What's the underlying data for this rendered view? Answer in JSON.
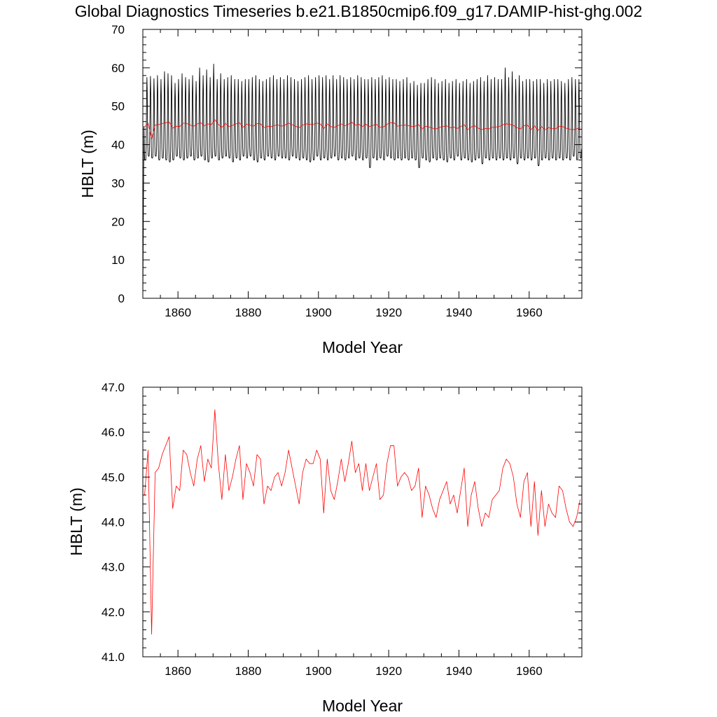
{
  "figure": {
    "title": "Global Diagnostics Timeseries b.e21.B1850cmip6.f09_g17.DAMIP-hist-ghg.002"
  },
  "chart_data": [
    {
      "type": "line",
      "title": "",
      "xlabel": "Model Year",
      "ylabel": "HBLT (m)",
      "xlim": [
        1850,
        1975
      ],
      "ylim": [
        0,
        70
      ],
      "xticks": [
        1860,
        1880,
        1900,
        1920,
        1940,
        1960
      ],
      "yticks": [
        0,
        10,
        20,
        30,
        40,
        50,
        60,
        70
      ],
      "ytick_labels": [
        "0",
        "10",
        "20",
        "30",
        "40",
        "50",
        "60",
        "70"
      ],
      "grid": false,
      "legend": "none",
      "series": [
        {
          "color": "#000000",
          "resolution": "monthly",
          "x_start": 1850.0,
          "points_per_year": 12,
          "initial_values": [
            0.0,
            12.0,
            25.0,
            36.0
          ],
          "annual_maxima": [
            56.0,
            57.5,
            57.8,
            57.2,
            58.0,
            57.0,
            59.0,
            58.5,
            58.0,
            56.0,
            57.0,
            58.5,
            57.5,
            57.0,
            58.0,
            56.5,
            60.0,
            58.0,
            59.5,
            57.5,
            61.0,
            57.0,
            58.5,
            57.0,
            57.5,
            58.0,
            57.0,
            57.0,
            56.5,
            57.0,
            57.0,
            57.5,
            58.0,
            57.0,
            56.5,
            57.0,
            57.5,
            58.0,
            57.0,
            57.5,
            57.0,
            58.0,
            57.5,
            57.0,
            56.5,
            57.0,
            57.5,
            58.0,
            57.0,
            57.5,
            58.0,
            57.5,
            58.0,
            57.0,
            58.0,
            57.0,
            58.0,
            57.5,
            57.0,
            57.5,
            57.0,
            58.0,
            57.5,
            57.0,
            57.0,
            57.5,
            57.0,
            57.5,
            58.0,
            57.0,
            57.5,
            57.0,
            57.0,
            56.5,
            57.0,
            57.5,
            56.0,
            56.5,
            55.5,
            56.0,
            56.0,
            57.0,
            57.5,
            57.0,
            56.0,
            56.5,
            57.0,
            56.0,
            56.5,
            57.0,
            56.0,
            56.5,
            57.0,
            56.0,
            56.5,
            57.0,
            57.5,
            56.5,
            58.0,
            57.0,
            57.5,
            57.0,
            57.0,
            60.0,
            57.5,
            59.0,
            57.0,
            58.0,
            56.5,
            57.0,
            57.0,
            56.5,
            57.0,
            57.0,
            56.0,
            57.0,
            56.5,
            57.0,
            57.0,
            56.5,
            56.0,
            57.0,
            57.5,
            57.0,
            57.0
          ],
          "annual_minima": [
            36.0,
            37.0,
            36.5,
            37.0,
            36.0,
            36.5,
            36.0,
            35.5,
            36.0,
            37.0,
            36.5,
            36.0,
            36.5,
            37.0,
            36.0,
            36.5,
            37.0,
            36.0,
            35.5,
            36.5,
            37.0,
            36.0,
            36.5,
            37.0,
            36.5,
            35.5,
            36.5,
            36.0,
            37.0,
            36.5,
            37.0,
            36.0,
            35.5,
            36.5,
            36.0,
            37.0,
            36.5,
            36.0,
            37.0,
            36.5,
            36.5,
            36.0,
            37.0,
            36.5,
            36.0,
            36.5,
            36.0,
            35.5,
            36.0,
            37.0,
            36.0,
            36.5,
            36.0,
            36.5,
            37.0,
            36.0,
            36.5,
            36.0,
            36.5,
            37.0,
            36.0,
            36.5,
            36.0,
            36.5,
            34.0,
            36.5,
            36.0,
            36.5,
            36.0,
            37.0,
            36.5,
            36.0,
            36.5,
            36.0,
            36.5,
            36.0,
            36.5,
            36.0,
            34.0,
            36.5,
            36.0,
            35.5,
            36.5,
            36.0,
            36.5,
            36.0,
            35.5,
            36.5,
            36.0,
            37.0,
            36.0,
            36.5,
            36.0,
            35.5,
            36.0,
            36.5,
            35.0,
            36.5,
            36.0,
            36.5,
            36.0,
            36.5,
            36.0,
            36.5,
            36.0,
            36.5,
            35.0,
            36.5,
            36.0,
            36.5,
            36.0,
            36.5,
            34.5,
            36.0,
            36.5,
            36.0,
            36.5,
            36.0,
            36.5,
            36.0,
            36.5,
            36.0,
            37.0,
            36.0,
            36.5
          ]
        },
        {
          "color": "#ff0000",
          "resolution": "annual",
          "x": [
            1850.5,
            1851.5,
            1852.5,
            1853.5,
            1854.5,
            1855.5,
            1856.5,
            1857.5,
            1858.5,
            1859.5,
            1860.5,
            1861.5,
            1862.5,
            1863.5,
            1864.5,
            1865.5,
            1866.5,
            1867.5,
            1868.5,
            1869.5,
            1870.5,
            1871.5,
            1872.5,
            1873.5,
            1874.5,
            1875.5,
            1876.5,
            1877.5,
            1878.5,
            1879.5,
            1880.5,
            1881.5,
            1882.5,
            1883.5,
            1884.5,
            1885.5,
            1886.5,
            1887.5,
            1888.5,
            1889.5,
            1890.5,
            1891.5,
            1892.5,
            1893.5,
            1894.5,
            1895.5,
            1896.5,
            1897.5,
            1898.5,
            1899.5,
            1900.5,
            1901.5,
            1902.5,
            1903.5,
            1904.5,
            1905.5,
            1906.5,
            1907.5,
            1908.5,
            1909.5,
            1910.5,
            1911.5,
            1912.5,
            1913.5,
            1914.5,
            1915.5,
            1916.5,
            1917.5,
            1918.5,
            1919.5,
            1920.5,
            1921.5,
            1922.5,
            1923.5,
            1924.5,
            1925.5,
            1926.5,
            1927.5,
            1928.5,
            1929.5,
            1930.5,
            1931.5,
            1932.5,
            1933.5,
            1934.5,
            1935.5,
            1936.5,
            1937.5,
            1938.5,
            1939.5,
            1940.5,
            1941.5,
            1942.5,
            1943.5,
            1944.5,
            1945.5,
            1946.5,
            1947.5,
            1948.5,
            1949.5,
            1950.5,
            1951.5,
            1952.5,
            1953.5,
            1954.5,
            1955.5,
            1956.5,
            1957.5,
            1958.5,
            1959.5,
            1960.5,
            1961.5,
            1962.5,
            1963.5,
            1964.5,
            1965.5,
            1966.5,
            1967.5,
            1968.5,
            1969.5,
            1970.5,
            1971.5,
            1972.5,
            1973.5,
            1974.5
          ],
          "y": [
            44.6,
            45.6,
            41.5,
            45.1,
            45.2,
            45.5,
            45.7,
            45.9,
            44.3,
            44.8,
            44.7,
            45.6,
            45.5,
            45.1,
            44.8,
            45.4,
            45.7,
            44.9,
            45.4,
            45.2,
            46.5,
            45.3,
            44.5,
            45.5,
            44.7,
            45.0,
            45.4,
            45.7,
            44.5,
            45.3,
            45.1,
            44.8,
            45.5,
            45.4,
            44.4,
            44.8,
            44.7,
            45.0,
            45.1,
            44.8,
            45.1,
            45.6,
            45.2,
            44.8,
            44.4,
            45.1,
            45.4,
            45.3,
            45.3,
            45.6,
            45.4,
            44.2,
            45.4,
            44.7,
            44.5,
            44.9,
            45.4,
            44.9,
            45.3,
            45.8,
            45.1,
            45.3,
            44.7,
            45.3,
            44.7,
            45.0,
            45.3,
            44.5,
            44.6,
            45.3,
            45.7,
            45.7,
            44.8,
            45.0,
            45.1,
            45.0,
            44.7,
            44.8,
            45.2,
            44.1,
            44.8,
            44.6,
            44.3,
            44.1,
            44.5,
            44.7,
            44.9,
            44.4,
            44.6,
            44.2,
            44.7,
            45.2,
            43.9,
            44.6,
            44.9,
            44.3,
            43.9,
            44.2,
            44.1,
            44.5,
            44.6,
            44.7,
            45.2,
            45.4,
            45.3,
            45.0,
            44.4,
            44.1,
            44.9,
            45.1,
            43.9,
            44.9,
            43.7,
            44.7,
            43.9,
            44.4,
            44.2,
            44.1,
            44.8,
            44.7,
            44.3,
            44.0,
            43.9,
            44.1,
            44.5
          ]
        }
      ]
    },
    {
      "type": "line",
      "title": "",
      "xlabel": "Model Year",
      "ylabel": "HBLT (m)",
      "xlim": [
        1850,
        1975
      ],
      "ylim": [
        41.0,
        47.0
      ],
      "xticks": [
        1860,
        1880,
        1900,
        1920,
        1940,
        1960
      ],
      "yticks": [
        41.0,
        42.0,
        43.0,
        44.0,
        45.0,
        46.0,
        47.0
      ],
      "ytick_labels": [
        "41.0",
        "42.0",
        "43.0",
        "44.0",
        "45.0",
        "46.0",
        "47.0"
      ],
      "grid": false,
      "legend": "none",
      "series": [
        {
          "color": "#ff0000",
          "resolution": "annual",
          "x": [
            1850.5,
            1851.5,
            1852.5,
            1853.5,
            1854.5,
            1855.5,
            1856.5,
            1857.5,
            1858.5,
            1859.5,
            1860.5,
            1861.5,
            1862.5,
            1863.5,
            1864.5,
            1865.5,
            1866.5,
            1867.5,
            1868.5,
            1869.5,
            1870.5,
            1871.5,
            1872.5,
            1873.5,
            1874.5,
            1875.5,
            1876.5,
            1877.5,
            1878.5,
            1879.5,
            1880.5,
            1881.5,
            1882.5,
            1883.5,
            1884.5,
            1885.5,
            1886.5,
            1887.5,
            1888.5,
            1889.5,
            1890.5,
            1891.5,
            1892.5,
            1893.5,
            1894.5,
            1895.5,
            1896.5,
            1897.5,
            1898.5,
            1899.5,
            1900.5,
            1901.5,
            1902.5,
            1903.5,
            1904.5,
            1905.5,
            1906.5,
            1907.5,
            1908.5,
            1909.5,
            1910.5,
            1911.5,
            1912.5,
            1913.5,
            1914.5,
            1915.5,
            1916.5,
            1917.5,
            1918.5,
            1919.5,
            1920.5,
            1921.5,
            1922.5,
            1923.5,
            1924.5,
            1925.5,
            1926.5,
            1927.5,
            1928.5,
            1929.5,
            1930.5,
            1931.5,
            1932.5,
            1933.5,
            1934.5,
            1935.5,
            1936.5,
            1937.5,
            1938.5,
            1939.5,
            1940.5,
            1941.5,
            1942.5,
            1943.5,
            1944.5,
            1945.5,
            1946.5,
            1947.5,
            1948.5,
            1949.5,
            1950.5,
            1951.5,
            1952.5,
            1953.5,
            1954.5,
            1955.5,
            1956.5,
            1957.5,
            1958.5,
            1959.5,
            1960.5,
            1961.5,
            1962.5,
            1963.5,
            1964.5,
            1965.5,
            1966.5,
            1967.5,
            1968.5,
            1969.5,
            1970.5,
            1971.5,
            1972.5,
            1973.5,
            1974.5
          ],
          "y": [
            44.6,
            45.6,
            41.5,
            45.1,
            45.2,
            45.5,
            45.7,
            45.9,
            44.3,
            44.8,
            44.7,
            45.6,
            45.5,
            45.1,
            44.8,
            45.4,
            45.7,
            44.9,
            45.4,
            45.2,
            46.5,
            45.3,
            44.5,
            45.5,
            44.7,
            45.0,
            45.4,
            45.7,
            44.5,
            45.3,
            45.1,
            44.8,
            45.5,
            45.4,
            44.4,
            44.8,
            44.7,
            45.0,
            45.1,
            44.8,
            45.1,
            45.6,
            45.2,
            44.8,
            44.4,
            45.1,
            45.4,
            45.3,
            45.3,
            45.6,
            45.4,
            44.2,
            45.4,
            44.7,
            44.5,
            44.9,
            45.4,
            44.9,
            45.3,
            45.8,
            45.1,
            45.3,
            44.7,
            45.3,
            44.7,
            45.0,
            45.3,
            44.5,
            44.6,
            45.3,
            45.7,
            45.7,
            44.8,
            45.0,
            45.1,
            45.0,
            44.7,
            44.8,
            45.2,
            44.1,
            44.8,
            44.6,
            44.3,
            44.1,
            44.5,
            44.7,
            44.9,
            44.4,
            44.6,
            44.2,
            44.7,
            45.2,
            43.9,
            44.6,
            44.9,
            44.3,
            43.9,
            44.2,
            44.1,
            44.5,
            44.6,
            44.7,
            45.2,
            45.4,
            45.3,
            45.0,
            44.4,
            44.1,
            44.9,
            45.1,
            43.9,
            44.9,
            43.7,
            44.7,
            43.9,
            44.4,
            44.2,
            44.1,
            44.8,
            44.7,
            44.3,
            44.0,
            43.9,
            44.1,
            44.5
          ]
        }
      ]
    }
  ]
}
